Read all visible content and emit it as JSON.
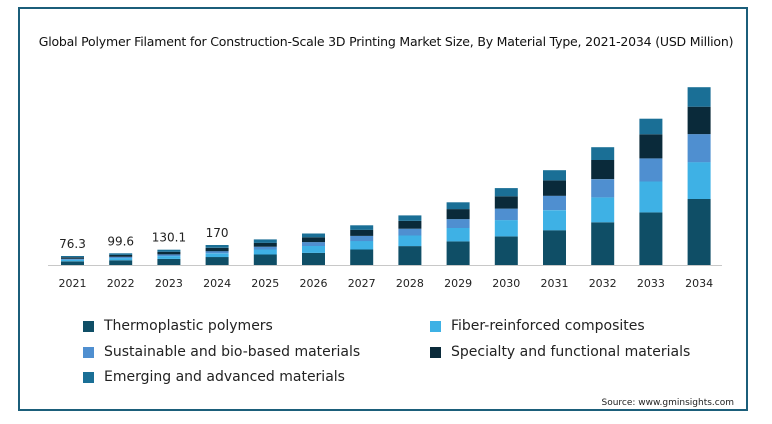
{
  "chart_data": {
    "type": "bar",
    "stacked": true,
    "title": "Global Polymer Filament for Construction-Scale 3D Printing Market Size, By Material Type, 2021-2034 (USD Million)",
    "categories": [
      "2021",
      "2022",
      "2023",
      "2024",
      "2025",
      "2026",
      "2027",
      "2028",
      "2029",
      "2030",
      "2031",
      "2032",
      "2033",
      "2034"
    ],
    "data_labels": [
      "76.3",
      "99.6",
      "130.1",
      "170",
      "",
      "",
      "",
      "",
      "",
      "",
      "",
      "",
      "",
      ""
    ],
    "series": [
      {
        "name": "Thermoplastic polymers",
        "color": "#0f4e66",
        "values": [
          31,
          40,
          52,
          68,
          89,
          103,
          132,
          161,
          201,
          243,
          296,
          364,
          448,
          562
        ]
      },
      {
        "name": "Fiber-reinforced composites",
        "color": "#3eb1e5",
        "values": [
          14,
          19,
          24,
          32,
          43,
          59,
          72,
          90,
          114,
          139,
          171,
          212,
          263,
          314
        ]
      },
      {
        "name": "Sustainable and bio-based materials",
        "color": "#4f8fd0",
        "values": [
          8,
          11,
          14,
          18,
          24,
          33,
          44,
          58,
          76,
          98,
          123,
          155,
          197,
          239
        ]
      },
      {
        "name": "Specialty and functional materials",
        "color": "#0a2a3a",
        "values": [
          13,
          16,
          22,
          28,
          32,
          41,
          51,
          66,
          85,
          105,
          130,
          163,
          205,
          233
        ]
      },
      {
        "name": "Emerging and advanced materials",
        "color": "#1a6f96",
        "values": [
          10.3,
          13.6,
          18.1,
          24,
          30,
          32,
          39,
          47,
          58,
          70,
          87,
          109,
          133,
          166
        ]
      }
    ],
    "ylim": [
      0,
      1550
    ],
    "grid": false,
    "legend_position": "bottom",
    "source": "Source: www.gminsights.com"
  }
}
